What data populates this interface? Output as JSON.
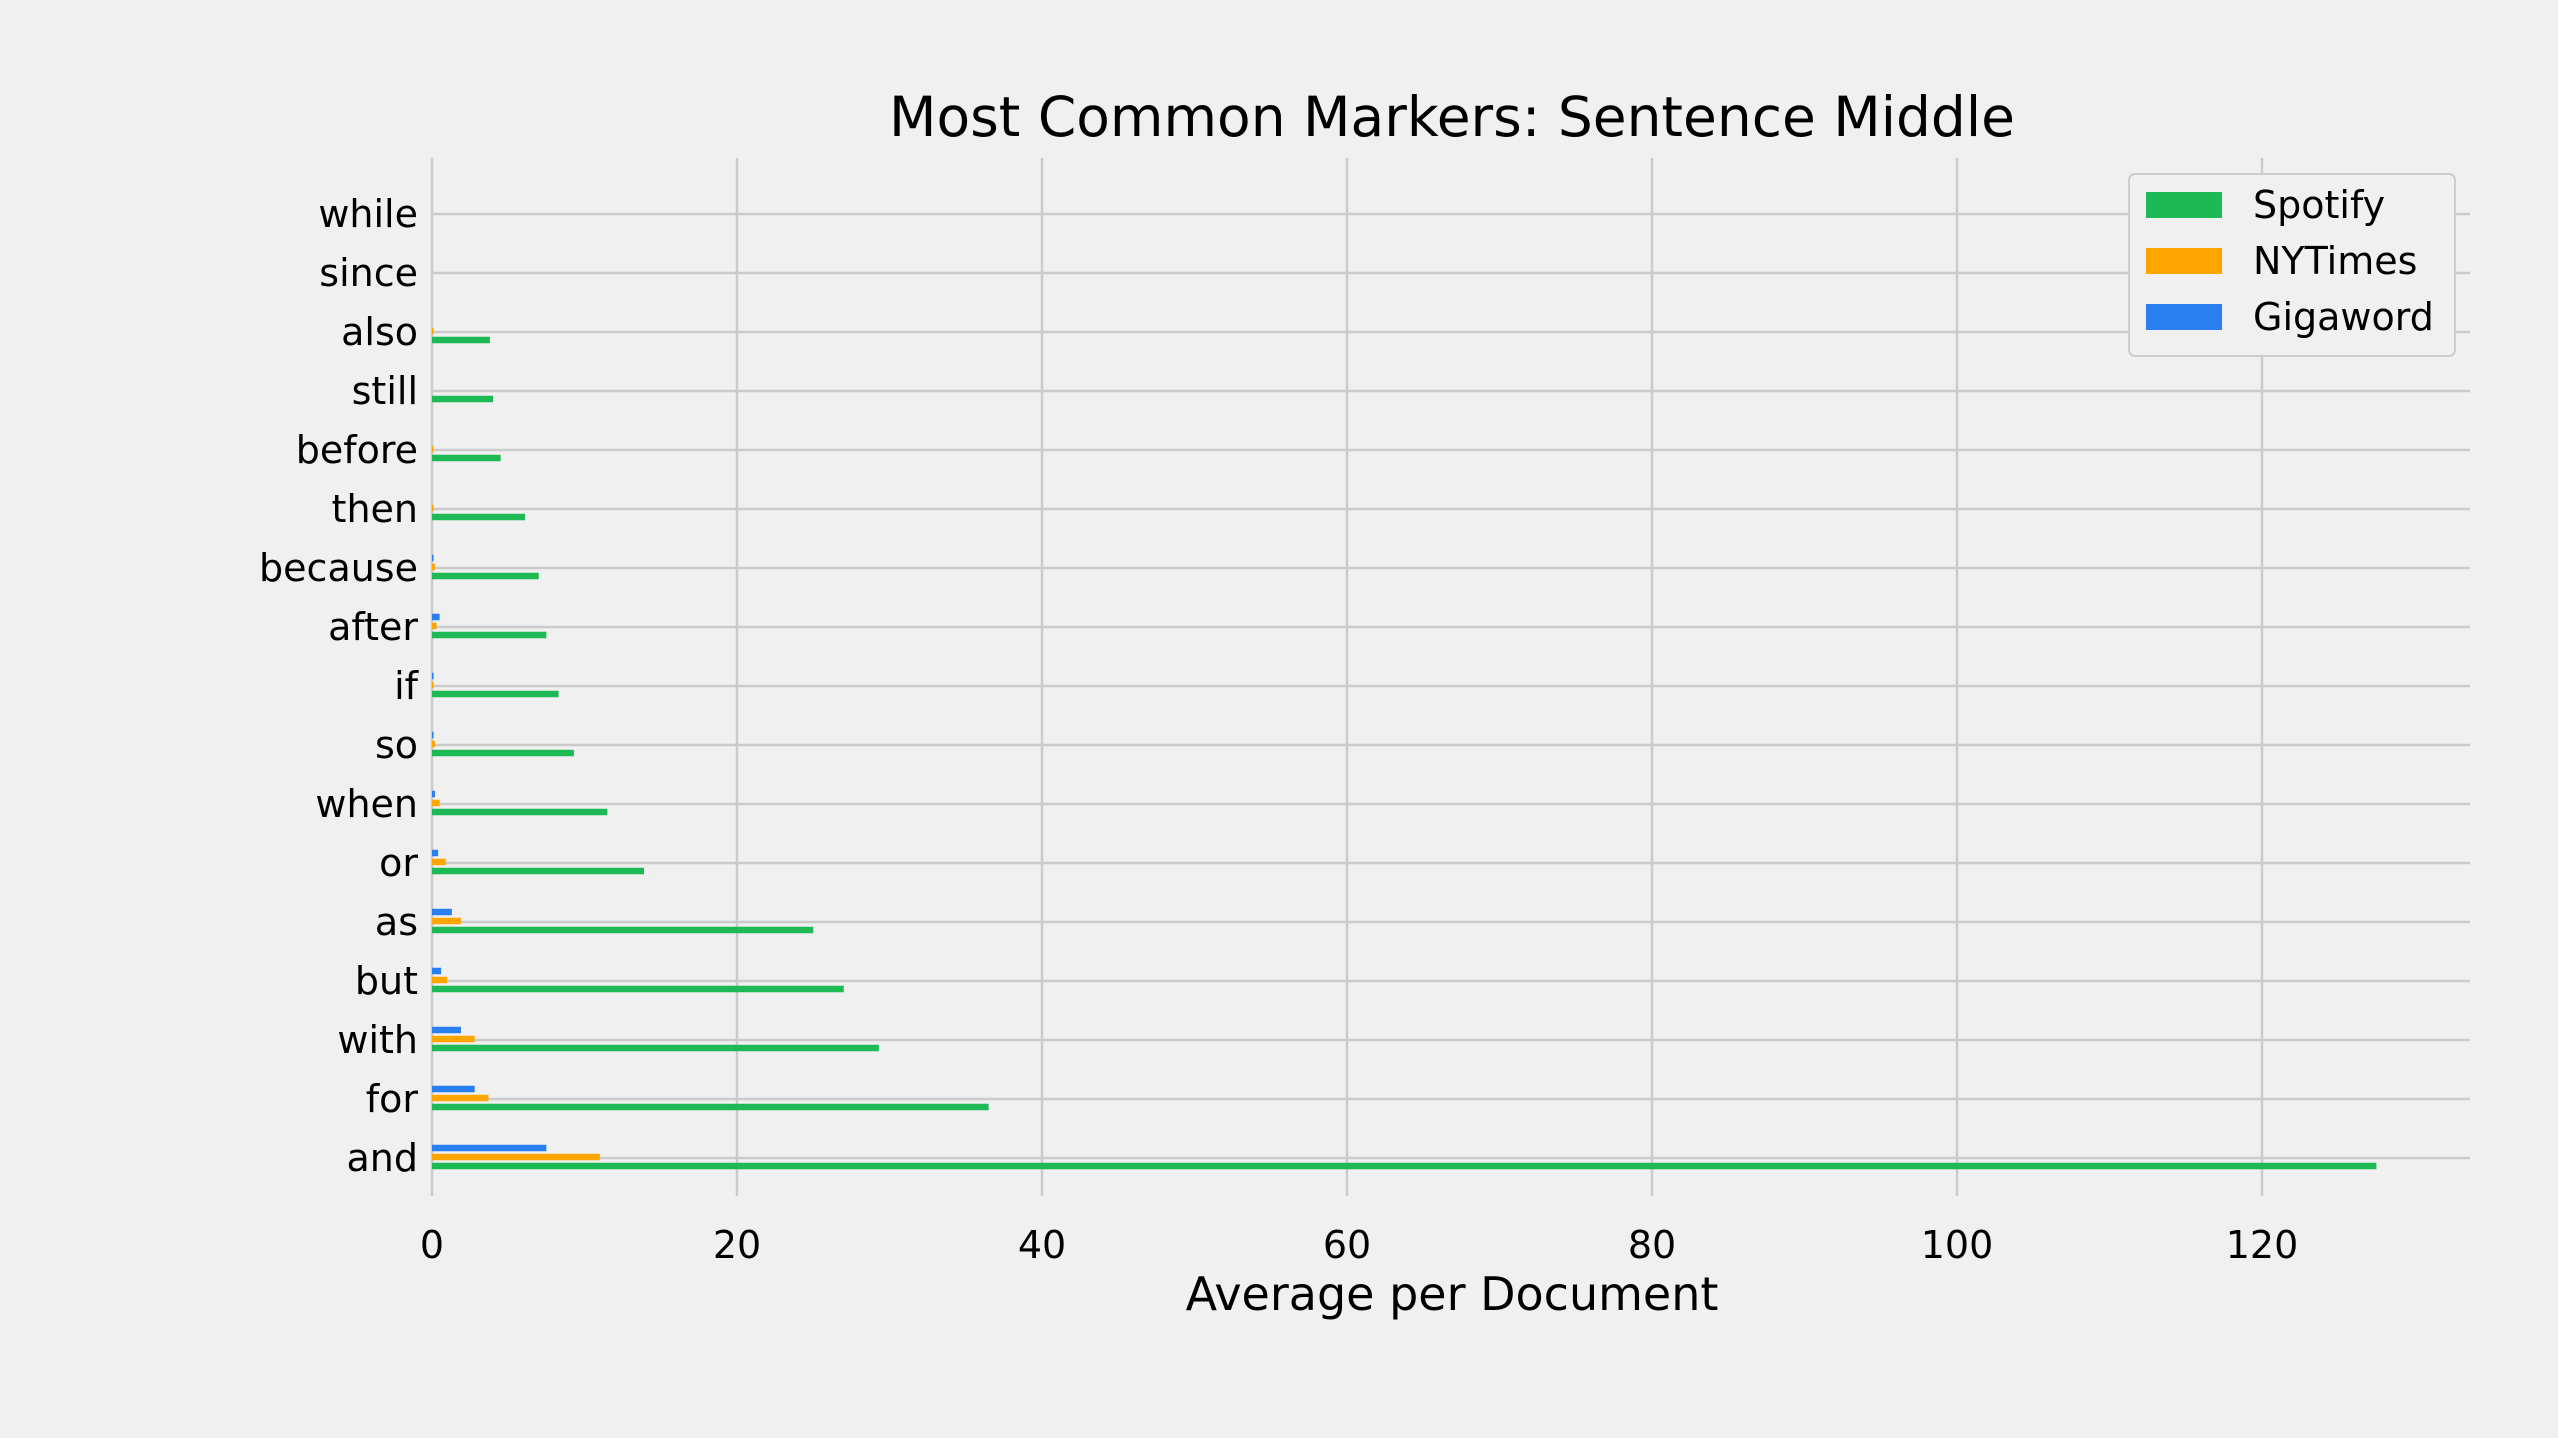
{
  "chart_data": {
    "type": "bar",
    "orientation": "horizontal",
    "title": "Most Common Markers: Sentence Middle",
    "xlabel": "Average per Document",
    "ylabel": "",
    "xlim": [
      0,
      133.5
    ],
    "x_ticks": [
      0,
      20,
      40,
      60,
      80,
      100,
      120
    ],
    "grid": true,
    "legend_position": "top-right",
    "categories": [
      "and",
      "for",
      "with",
      "but",
      "as",
      "or",
      "when",
      "so",
      "if",
      "after",
      "because",
      "then",
      "before",
      "still",
      "also",
      "since",
      "while"
    ],
    "series": [
      {
        "name": "Spotify",
        "color": "#1db954",
        "values": [
          127.5,
          36.5,
          29.3,
          27.0,
          25.0,
          13.9,
          11.5,
          9.3,
          8.3,
          7.5,
          7.0,
          6.1,
          4.5,
          4.0,
          3.8,
          0.0,
          0.0
        ]
      },
      {
        "name": "NYTimes",
        "color": "#ffa500",
        "values": [
          11.0,
          3.7,
          2.8,
          1.0,
          1.9,
          0.9,
          0.5,
          0.2,
          0.1,
          0.3,
          0.2,
          0.1,
          0.1,
          0.0,
          0.1,
          0.0,
          0.0
        ]
      },
      {
        "name": "Gigaword",
        "color": "#2a7ff0",
        "values": [
          7.5,
          2.8,
          1.9,
          0.6,
          1.3,
          0.4,
          0.2,
          0.1,
          0.1,
          0.5,
          0.1,
          0.0,
          0.0,
          0.0,
          0.0,
          0.0,
          0.0
        ]
      }
    ]
  }
}
